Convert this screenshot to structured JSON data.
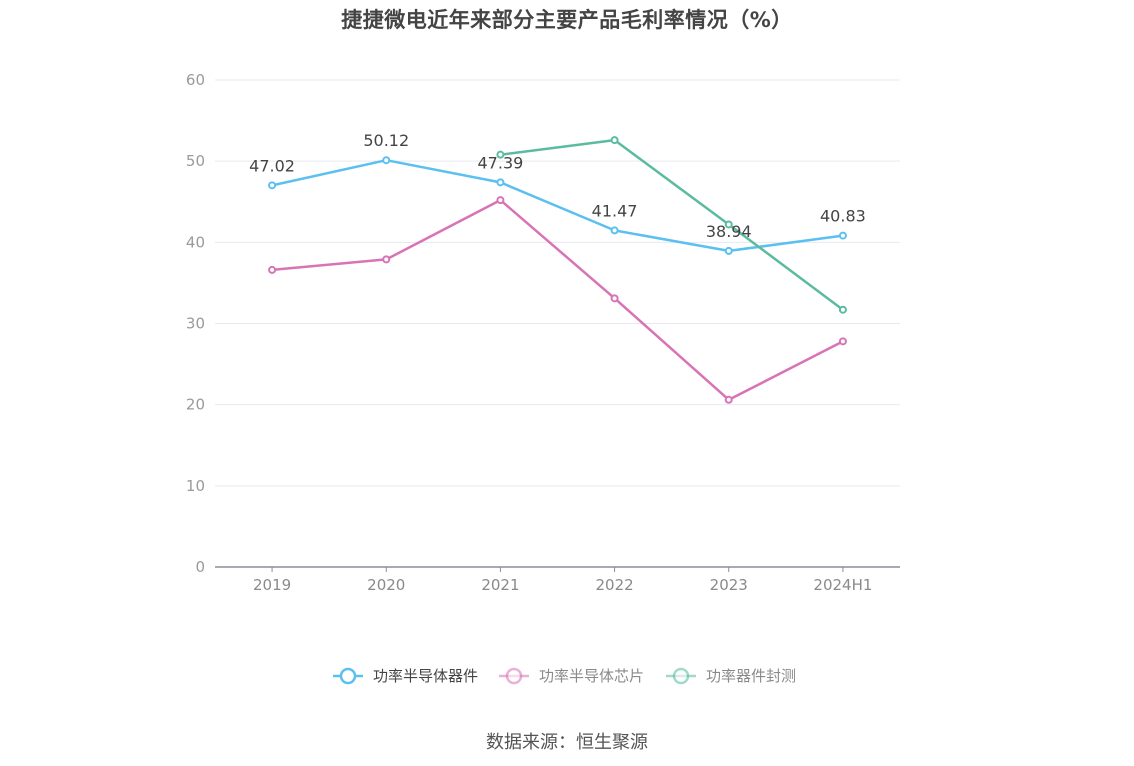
{
  "title": "捷捷微电近年来部分主要产品毛利率情况（%）",
  "source": "数据来源：恒生聚源",
  "chart_data": {
    "type": "line",
    "categories": [
      "2019",
      "2020",
      "2021",
      "2022",
      "2023",
      "2024H1"
    ],
    "ylim": [
      0,
      60
    ],
    "yticks": [
      0,
      10,
      20,
      30,
      40,
      50,
      60
    ],
    "grid": true,
    "legend_position": "bottom",
    "series": [
      {
        "name": "功率半导体器件",
        "color": "#5bc0f0",
        "values": [
          47.02,
          50.12,
          47.39,
          41.47,
          38.94,
          40.83
        ],
        "labels": [
          "47.02",
          "50.12",
          "47.39",
          "41.47",
          "38.94",
          "40.83"
        ]
      },
      {
        "name": "功率半导体芯片",
        "color": "#d873b6",
        "values": [
          36.6,
          37.9,
          45.2,
          33.1,
          20.6,
          27.8
        ]
      },
      {
        "name": "功率器件封测",
        "color": "#5bbba0",
        "values": [
          null,
          null,
          50.8,
          52.6,
          42.2,
          31.7
        ]
      }
    ]
  }
}
